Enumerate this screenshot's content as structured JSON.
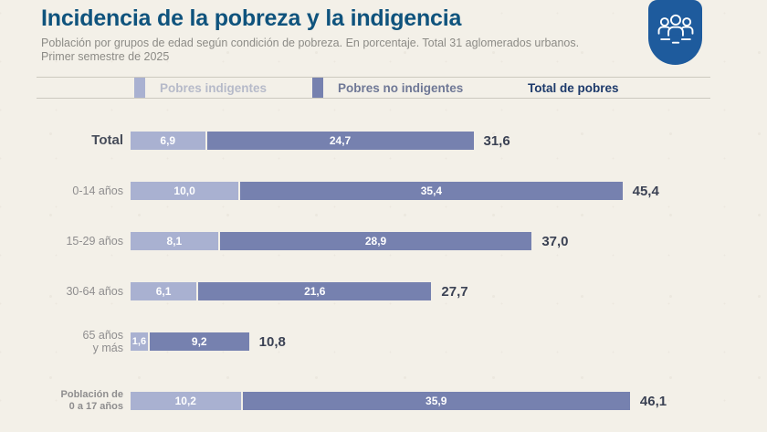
{
  "header": {
    "title": "Incidencia de la pobreza y la indigencia",
    "subtitle_line1": "Población por grupos de edad según condición de pobreza. En porcentaje. Total 31 aglomerados urbanos.",
    "subtitle_line2": "Primer semestre de 2025",
    "logo_icon": "people-group-icon",
    "logo_color": "#1e5b9d"
  },
  "legend": {
    "items": [
      {
        "label": "Pobres indigentes",
        "swatch_color": "#a9b1d1",
        "text_color": "#b6bac9"
      },
      {
        "label": "Pobres no indigentes",
        "swatch_color": "#7681af",
        "text_color": "#6f7896"
      },
      {
        "label": "Total de pobres",
        "swatch_color": null,
        "text_color": "#1d3a6b"
      }
    ]
  },
  "chart_data": {
    "type": "bar",
    "orientation": "horizontal",
    "stacked": true,
    "unit": "percent",
    "xlim": [
      0,
      50
    ],
    "grid": false,
    "legend_position": "top",
    "categories": [
      "Total",
      "0-14 años",
      "15-29 años",
      "30-64 años",
      "65 años y más",
      "Población de 0 a 17 años"
    ],
    "series": [
      {
        "name": "Pobres indigentes",
        "values": [
          6.9,
          10.0,
          8.1,
          6.1,
          1.6,
          10.2
        ]
      },
      {
        "name": "Pobres no indigentes",
        "values": [
          24.7,
          35.4,
          28.9,
          21.6,
          9.2,
          35.9
        ]
      }
    ],
    "totals": [
      31.6,
      45.4,
      37.0,
      27.7,
      10.8,
      46.1
    ],
    "rows": [
      {
        "label_line1": "Total",
        "label_line2": "",
        "light": 6.9,
        "light_label": "6,9",
        "dark": 24.7,
        "dark_label": "24,7",
        "total": 31.6,
        "total_label": "31,6"
      },
      {
        "label_line1": "0-14 años",
        "label_line2": "",
        "light": 10.0,
        "light_label": "10,0",
        "dark": 35.4,
        "dark_label": "35,4",
        "total": 45.4,
        "total_label": "45,4"
      },
      {
        "label_line1": "15-29 años",
        "label_line2": "",
        "light": 8.1,
        "light_label": "8,1",
        "dark": 28.9,
        "dark_label": "28,9",
        "total": 37.0,
        "total_label": "37,0"
      },
      {
        "label_line1": "30-64 años",
        "label_line2": "",
        "light": 6.1,
        "light_label": "6,1",
        "dark": 21.6,
        "dark_label": "21,6",
        "total": 27.7,
        "total_label": "27,7"
      },
      {
        "label_line1": "65 años",
        "label_line2": "y más",
        "light": 1.6,
        "light_label": "1,6",
        "dark": 9.2,
        "dark_label": "9,2",
        "total": 10.8,
        "total_label": "10,8"
      },
      {
        "label_line1": "Población de",
        "label_line2": "0 a 17 años",
        "light": 10.2,
        "light_label": "10,2",
        "dark": 35.9,
        "dark_label": "35,9",
        "total": 46.1,
        "total_label": "46,1"
      }
    ],
    "colors": {
      "indigentes": "#a9b1d1",
      "no_indigentes": "#7681af",
      "background": "#f3f0e8",
      "title": "#0f537d"
    }
  }
}
